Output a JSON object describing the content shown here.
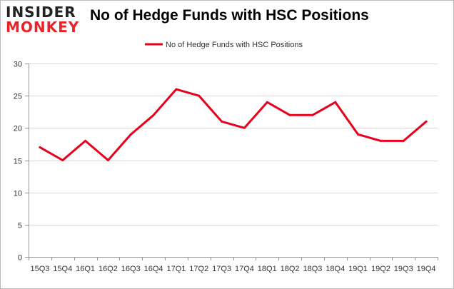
{
  "logo": {
    "line1": "INSIDER",
    "line2": "MONKEY"
  },
  "chart_data": {
    "type": "line",
    "title": "No of Hedge Funds with HSC Positions",
    "categories": [
      "15Q3",
      "15Q4",
      "16Q1",
      "16Q2",
      "16Q3",
      "16Q4",
      "17Q1",
      "17Q2",
      "17Q3",
      "17Q4",
      "18Q1",
      "18Q2",
      "18Q3",
      "18Q4",
      "19Q1",
      "19Q2",
      "19Q3",
      "19Q4"
    ],
    "series": [
      {
        "name": "No of Hedge Funds with HSC Positions",
        "values": [
          17,
          15,
          18,
          15,
          19,
          22,
          26,
          25,
          21,
          20,
          24,
          22,
          22,
          24,
          19,
          18,
          18,
          21
        ],
        "color": "#e8001c"
      }
    ],
    "xlabel": "",
    "ylabel": "",
    "ylim": [
      0,
      30
    ],
    "yticks": [
      0,
      5,
      10,
      15,
      20,
      25,
      30
    ],
    "grid": true,
    "legend_position": "top-center"
  }
}
